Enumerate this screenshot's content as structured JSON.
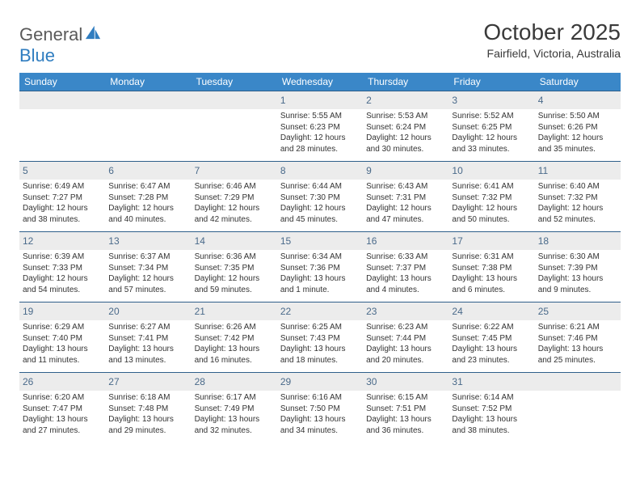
{
  "logo": {
    "word1": "General",
    "word2": "Blue",
    "icon_color": "#2f7dc0",
    "text_color": "#5a5a5a"
  },
  "title": "October 2025",
  "location": "Fairfield, Victoria, Australia",
  "header_bg": "#3a87c8",
  "daynum_bg": "#ececec",
  "border_color": "#2f5f8a",
  "day_names": [
    "Sunday",
    "Monday",
    "Tuesday",
    "Wednesday",
    "Thursday",
    "Friday",
    "Saturday"
  ],
  "weeks": [
    [
      null,
      null,
      null,
      {
        "n": "1",
        "sunrise": "Sunrise: 5:55 AM",
        "sunset": "Sunset: 6:23 PM",
        "daylight1": "Daylight: 12 hours",
        "daylight2": "and 28 minutes."
      },
      {
        "n": "2",
        "sunrise": "Sunrise: 5:53 AM",
        "sunset": "Sunset: 6:24 PM",
        "daylight1": "Daylight: 12 hours",
        "daylight2": "and 30 minutes."
      },
      {
        "n": "3",
        "sunrise": "Sunrise: 5:52 AM",
        "sunset": "Sunset: 6:25 PM",
        "daylight1": "Daylight: 12 hours",
        "daylight2": "and 33 minutes."
      },
      {
        "n": "4",
        "sunrise": "Sunrise: 5:50 AM",
        "sunset": "Sunset: 6:26 PM",
        "daylight1": "Daylight: 12 hours",
        "daylight2": "and 35 minutes."
      }
    ],
    [
      {
        "n": "5",
        "sunrise": "Sunrise: 6:49 AM",
        "sunset": "Sunset: 7:27 PM",
        "daylight1": "Daylight: 12 hours",
        "daylight2": "and 38 minutes."
      },
      {
        "n": "6",
        "sunrise": "Sunrise: 6:47 AM",
        "sunset": "Sunset: 7:28 PM",
        "daylight1": "Daylight: 12 hours",
        "daylight2": "and 40 minutes."
      },
      {
        "n": "7",
        "sunrise": "Sunrise: 6:46 AM",
        "sunset": "Sunset: 7:29 PM",
        "daylight1": "Daylight: 12 hours",
        "daylight2": "and 42 minutes."
      },
      {
        "n": "8",
        "sunrise": "Sunrise: 6:44 AM",
        "sunset": "Sunset: 7:30 PM",
        "daylight1": "Daylight: 12 hours",
        "daylight2": "and 45 minutes."
      },
      {
        "n": "9",
        "sunrise": "Sunrise: 6:43 AM",
        "sunset": "Sunset: 7:31 PM",
        "daylight1": "Daylight: 12 hours",
        "daylight2": "and 47 minutes."
      },
      {
        "n": "10",
        "sunrise": "Sunrise: 6:41 AM",
        "sunset": "Sunset: 7:32 PM",
        "daylight1": "Daylight: 12 hours",
        "daylight2": "and 50 minutes."
      },
      {
        "n": "11",
        "sunrise": "Sunrise: 6:40 AM",
        "sunset": "Sunset: 7:32 PM",
        "daylight1": "Daylight: 12 hours",
        "daylight2": "and 52 minutes."
      }
    ],
    [
      {
        "n": "12",
        "sunrise": "Sunrise: 6:39 AM",
        "sunset": "Sunset: 7:33 PM",
        "daylight1": "Daylight: 12 hours",
        "daylight2": "and 54 minutes."
      },
      {
        "n": "13",
        "sunrise": "Sunrise: 6:37 AM",
        "sunset": "Sunset: 7:34 PM",
        "daylight1": "Daylight: 12 hours",
        "daylight2": "and 57 minutes."
      },
      {
        "n": "14",
        "sunrise": "Sunrise: 6:36 AM",
        "sunset": "Sunset: 7:35 PM",
        "daylight1": "Daylight: 12 hours",
        "daylight2": "and 59 minutes."
      },
      {
        "n": "15",
        "sunrise": "Sunrise: 6:34 AM",
        "sunset": "Sunset: 7:36 PM",
        "daylight1": "Daylight: 13 hours",
        "daylight2": "and 1 minute."
      },
      {
        "n": "16",
        "sunrise": "Sunrise: 6:33 AM",
        "sunset": "Sunset: 7:37 PM",
        "daylight1": "Daylight: 13 hours",
        "daylight2": "and 4 minutes."
      },
      {
        "n": "17",
        "sunrise": "Sunrise: 6:31 AM",
        "sunset": "Sunset: 7:38 PM",
        "daylight1": "Daylight: 13 hours",
        "daylight2": "and 6 minutes."
      },
      {
        "n": "18",
        "sunrise": "Sunrise: 6:30 AM",
        "sunset": "Sunset: 7:39 PM",
        "daylight1": "Daylight: 13 hours",
        "daylight2": "and 9 minutes."
      }
    ],
    [
      {
        "n": "19",
        "sunrise": "Sunrise: 6:29 AM",
        "sunset": "Sunset: 7:40 PM",
        "daylight1": "Daylight: 13 hours",
        "daylight2": "and 11 minutes."
      },
      {
        "n": "20",
        "sunrise": "Sunrise: 6:27 AM",
        "sunset": "Sunset: 7:41 PM",
        "daylight1": "Daylight: 13 hours",
        "daylight2": "and 13 minutes."
      },
      {
        "n": "21",
        "sunrise": "Sunrise: 6:26 AM",
        "sunset": "Sunset: 7:42 PM",
        "daylight1": "Daylight: 13 hours",
        "daylight2": "and 16 minutes."
      },
      {
        "n": "22",
        "sunrise": "Sunrise: 6:25 AM",
        "sunset": "Sunset: 7:43 PM",
        "daylight1": "Daylight: 13 hours",
        "daylight2": "and 18 minutes."
      },
      {
        "n": "23",
        "sunrise": "Sunrise: 6:23 AM",
        "sunset": "Sunset: 7:44 PM",
        "daylight1": "Daylight: 13 hours",
        "daylight2": "and 20 minutes."
      },
      {
        "n": "24",
        "sunrise": "Sunrise: 6:22 AM",
        "sunset": "Sunset: 7:45 PM",
        "daylight1": "Daylight: 13 hours",
        "daylight2": "and 23 minutes."
      },
      {
        "n": "25",
        "sunrise": "Sunrise: 6:21 AM",
        "sunset": "Sunset: 7:46 PM",
        "daylight1": "Daylight: 13 hours",
        "daylight2": "and 25 minutes."
      }
    ],
    [
      {
        "n": "26",
        "sunrise": "Sunrise: 6:20 AM",
        "sunset": "Sunset: 7:47 PM",
        "daylight1": "Daylight: 13 hours",
        "daylight2": "and 27 minutes."
      },
      {
        "n": "27",
        "sunrise": "Sunrise: 6:18 AM",
        "sunset": "Sunset: 7:48 PM",
        "daylight1": "Daylight: 13 hours",
        "daylight2": "and 29 minutes."
      },
      {
        "n": "28",
        "sunrise": "Sunrise: 6:17 AM",
        "sunset": "Sunset: 7:49 PM",
        "daylight1": "Daylight: 13 hours",
        "daylight2": "and 32 minutes."
      },
      {
        "n": "29",
        "sunrise": "Sunrise: 6:16 AM",
        "sunset": "Sunset: 7:50 PM",
        "daylight1": "Daylight: 13 hours",
        "daylight2": "and 34 minutes."
      },
      {
        "n": "30",
        "sunrise": "Sunrise: 6:15 AM",
        "sunset": "Sunset: 7:51 PM",
        "daylight1": "Daylight: 13 hours",
        "daylight2": "and 36 minutes."
      },
      {
        "n": "31",
        "sunrise": "Sunrise: 6:14 AM",
        "sunset": "Sunset: 7:52 PM",
        "daylight1": "Daylight: 13 hours",
        "daylight2": "and 38 minutes."
      },
      null
    ]
  ]
}
